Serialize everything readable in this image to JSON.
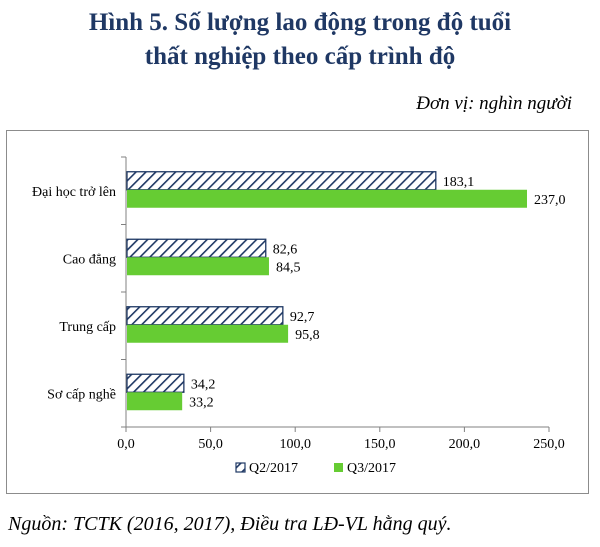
{
  "header": {
    "title_line1": "Hình 5. Số lượng lao động trong độ tuổi",
    "title_line2": "thất nghiệp theo cấp trình độ",
    "unit": "Đơn vị: nghìn người"
  },
  "footer": {
    "source": "Nguồn: TCTK (2016, 2017), Điều tra LĐ-VL hằng quý."
  },
  "colors": {
    "q2_stroke": "#1f3864",
    "q2_fill": "#ffffff",
    "q3_fill": "#66cc33",
    "title": "#1f3864"
  },
  "chart_data": {
    "type": "bar",
    "orientation": "horizontal",
    "categories": [
      "Đại học trở lên",
      "Cao đẳng",
      "Trung cấp",
      "Sơ cấp nghề"
    ],
    "series": [
      {
        "name": "Q2/2017",
        "pattern": "diagonal-hatch",
        "values": [
          183.1,
          82.6,
          92.7,
          34.2
        ],
        "labels": [
          "183,1",
          "82,6",
          "92,7",
          "34,2"
        ]
      },
      {
        "name": "Q3/2017",
        "pattern": "solid",
        "values": [
          237.0,
          84.5,
          95.8,
          33.2
        ],
        "labels": [
          "237,0",
          "84,5",
          "95,8",
          "33,2"
        ]
      }
    ],
    "xlim": [
      0,
      250
    ],
    "ticks": [
      0,
      50,
      100,
      150,
      200,
      250
    ],
    "tick_labels": [
      "0,0",
      "50,0",
      "100,0",
      "150,0",
      "200,0",
      "250,0"
    ],
    "legend_position": "bottom",
    "grid": false
  }
}
